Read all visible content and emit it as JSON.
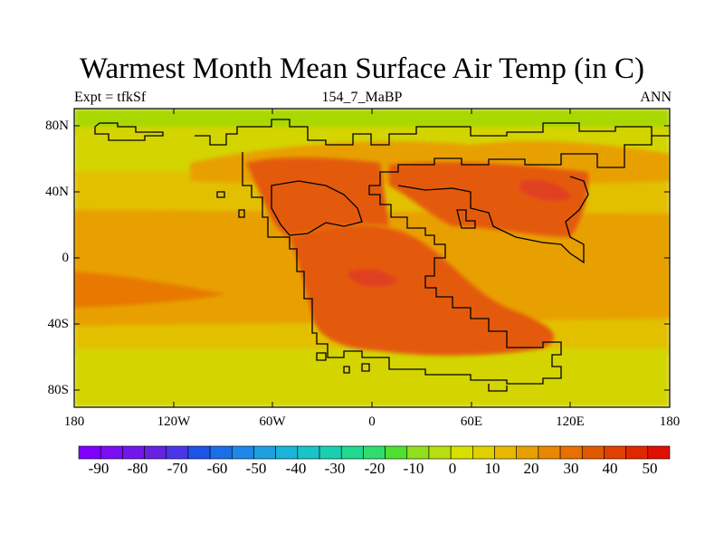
{
  "title": "Warmest Month Mean Surface Air Temp (in C)",
  "subtitle_left": "Expt = tfkSf",
  "subtitle_center": "154_7_MaBP",
  "subtitle_right": "ANN",
  "map": {
    "lon_range": [
      -180,
      180
    ],
    "lat_range": [
      -90,
      90
    ],
    "x_ticks": [
      "180",
      "120W",
      "60W",
      "0",
      "60E",
      "120E",
      "180"
    ],
    "y_ticks": [
      "80N",
      "40N",
      "0",
      "40S",
      "80S"
    ]
  },
  "colorbar": {
    "labels": [
      "-90",
      "-80",
      "-70",
      "-60",
      "-50",
      "-40",
      "-30",
      "-20",
      "-10",
      "0",
      "10",
      "20",
      "30",
      "40",
      "50"
    ],
    "colors": [
      "#7f00ff",
      "#7a0df4",
      "#7018ea",
      "#6523e0",
      "#4a35e8",
      "#1f54e8",
      "#1a6ee8",
      "#1e88e8",
      "#1ea0e0",
      "#1ab4d8",
      "#18c4c8",
      "#18d0b0",
      "#20d890",
      "#30dc70",
      "#50e030",
      "#90e020",
      "#b8e010",
      "#d8e000",
      "#e0d000",
      "#e8b800",
      "#e8a000",
      "#e88800",
      "#e87000",
      "#e05800",
      "#e04000",
      "#e02800",
      "#e01000"
    ]
  },
  "colors": {
    "background": "#ffffff",
    "polar": "#a8d800",
    "cool": "#d4d400",
    "mild": "#e2c000",
    "warm": "#e8a000",
    "hot": "#e87800",
    "hotter": "#e45a10",
    "hottest": "#e04020"
  }
}
